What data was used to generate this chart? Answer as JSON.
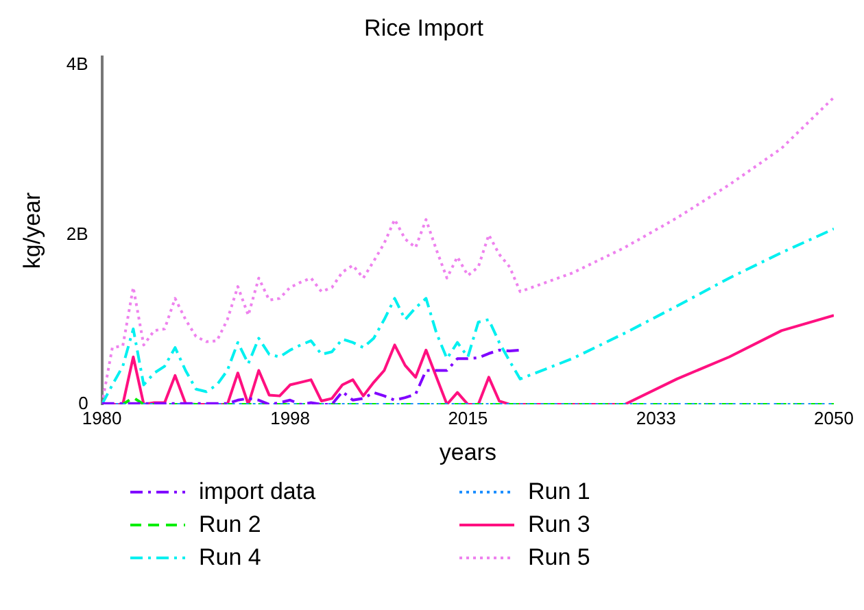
{
  "chart_data": {
    "type": "line",
    "title": "Rice Import",
    "xlabel": "years",
    "ylabel": "kg/year",
    "x": [
      1980,
      1981,
      1982,
      1983,
      1984,
      1985,
      1986,
      1987,
      1988,
      1989,
      1990,
      1991,
      1992,
      1993,
      1994,
      1995,
      1996,
      1997,
      1998,
      1999,
      2000,
      2001,
      2002,
      2003,
      2004,
      2005,
      2006,
      2007,
      2008,
      2009,
      2010,
      2011,
      2012,
      2013,
      2014,
      2015,
      2016,
      2017,
      2018,
      2019,
      2020,
      2025,
      2030,
      2035,
      2040,
      2045,
      2050
    ],
    "xlim": [
      1980,
      2050
    ],
    "xticks": [
      1980,
      1998,
      2015,
      2033,
      2050
    ],
    "ylim": [
      0,
      4100000000.0
    ],
    "yticks": [
      {
        "value": 0,
        "label": "0"
      },
      {
        "value": 2000000000.0,
        "label": "2B"
      },
      {
        "value": 4000000000.0,
        "label": "4B"
      }
    ],
    "grid": false,
    "legend": "bottom",
    "series": [
      {
        "name": "import data",
        "color": "#8000ff",
        "line_style": "dashdot",
        "x": [
          1980,
          1981,
          1982,
          1983,
          1984,
          1985,
          1986,
          1987,
          1988,
          1989,
          1990,
          1991,
          1992,
          1993,
          1994,
          1995,
          1996,
          1997,
          1998,
          1999,
          2000,
          2001,
          2002,
          2003,
          2004,
          2005,
          2006,
          2007,
          2008,
          2009,
          2010,
          2011,
          2012,
          2013,
          2014,
          2015,
          2016,
          2017,
          2018,
          2019,
          2020
        ],
        "values": [
          10000000.0,
          10000000.0,
          10000000.0,
          10000000.0,
          10000000.0,
          10000000.0,
          10000000.0,
          10000000.0,
          10000000.0,
          10000000.0,
          10000000.0,
          10000000.0,
          10000000.0,
          50000000.0,
          70000000.0,
          50000000.0,
          0,
          20000000.0,
          50000000.0,
          0,
          20000000.0,
          0,
          0,
          150000000.0,
          50000000.0,
          70000000.0,
          140000000.0,
          100000000.0,
          50000000.0,
          80000000.0,
          120000000.0,
          400000000.0,
          400000000.0,
          400000000.0,
          540000000.0,
          540000000.0,
          550000000.0,
          600000000.0,
          640000000.0,
          630000000.0,
          640000000.0
        ]
      },
      {
        "name": "Run 1",
        "color": "#1e90ff",
        "line_style": "dotted",
        "values": [
          0,
          0,
          0,
          0,
          0,
          0,
          0,
          0,
          0,
          0,
          0,
          0,
          0,
          0,
          0,
          0,
          0,
          0,
          0,
          0,
          0,
          0,
          0,
          0,
          0,
          0,
          0,
          0,
          0,
          0,
          0,
          0,
          0,
          0,
          0,
          0,
          0,
          0,
          0,
          0,
          0,
          0,
          0,
          0,
          0,
          0,
          0
        ]
      },
      {
        "name": "Run 2",
        "color": "#00ee00",
        "line_style": "dashed",
        "values": [
          0,
          0,
          0,
          80000000.0,
          0,
          0,
          0,
          0,
          0,
          0,
          0,
          0,
          0,
          0,
          0,
          0,
          0,
          0,
          0,
          0,
          0,
          0,
          0,
          0,
          0,
          0,
          0,
          0,
          0,
          0,
          0,
          0,
          0,
          0,
          0,
          0,
          0,
          0,
          0,
          0,
          0,
          0,
          0,
          0,
          0,
          0,
          0
        ]
      },
      {
        "name": "Run 3",
        "color": "#ff1080",
        "line_style": "solid",
        "values": [
          0,
          0,
          0,
          560000000.0,
          0,
          20000000.0,
          20000000.0,
          340000000.0,
          10000000.0,
          0,
          0,
          0,
          0,
          370000000.0,
          0,
          400000000.0,
          110000000.0,
          100000000.0,
          230000000.0,
          260000000.0,
          290000000.0,
          40000000.0,
          70000000.0,
          230000000.0,
          290000000.0,
          100000000.0,
          260000000.0,
          400000000.0,
          700000000.0,
          460000000.0,
          320000000.0,
          640000000.0,
          320000000.0,
          0,
          140000000.0,
          0,
          0,
          320000000.0,
          40000000.0,
          0,
          0,
          0,
          0,
          300000000.0,
          560000000.0,
          870000000.0,
          1050000000.0
        ]
      },
      {
        "name": "Run 4",
        "color": "#00f0f0",
        "line_style": "dashdot",
        "values": [
          0,
          230000000.0,
          450000000.0,
          890000000.0,
          230000000.0,
          370000000.0,
          450000000.0,
          670000000.0,
          400000000.0,
          180000000.0,
          150000000.0,
          230000000.0,
          400000000.0,
          730000000.0,
          480000000.0,
          780000000.0,
          590000000.0,
          560000000.0,
          640000000.0,
          700000000.0,
          750000000.0,
          590000000.0,
          620000000.0,
          770000000.0,
          730000000.0,
          670000000.0,
          780000000.0,
          1000000000.0,
          1250000000.0,
          1000000000.0,
          1140000000.0,
          1250000000.0,
          840000000.0,
          540000000.0,
          730000000.0,
          560000000.0,
          970000000.0,
          1000000000.0,
          730000000.0,
          510000000.0,
          300000000.0,
          540000000.0,
          840000000.0,
          1160000000.0,
          1490000000.0,
          1790000000.0,
          2070000000.0
        ]
      },
      {
        "name": "Run 5",
        "color": "#ee82ee",
        "line_style": "dotted",
        "values": [
          0,
          670000000.0,
          690000000.0,
          1380000000.0,
          700000000.0,
          870000000.0,
          890000000.0,
          1250000000.0,
          1000000000.0,
          800000000.0,
          740000000.0,
          750000000.0,
          1000000000.0,
          1390000000.0,
          1050000000.0,
          1490000000.0,
          1230000000.0,
          1250000000.0,
          1380000000.0,
          1440000000.0,
          1490000000.0,
          1330000000.0,
          1380000000.0,
          1560000000.0,
          1640000000.0,
          1490000000.0,
          1690000000.0,
          1900000000.0,
          2180000000.0,
          1950000000.0,
          1850000000.0,
          2180000000.0,
          1820000000.0,
          1490000000.0,
          1740000000.0,
          1520000000.0,
          1620000000.0,
          2000000000.0,
          1770000000.0,
          1620000000.0,
          1330000000.0,
          1550000000.0,
          1850000000.0,
          2200000000.0,
          2590000000.0,
          3020000000.0,
          3620000000.0
        ]
      }
    ]
  }
}
